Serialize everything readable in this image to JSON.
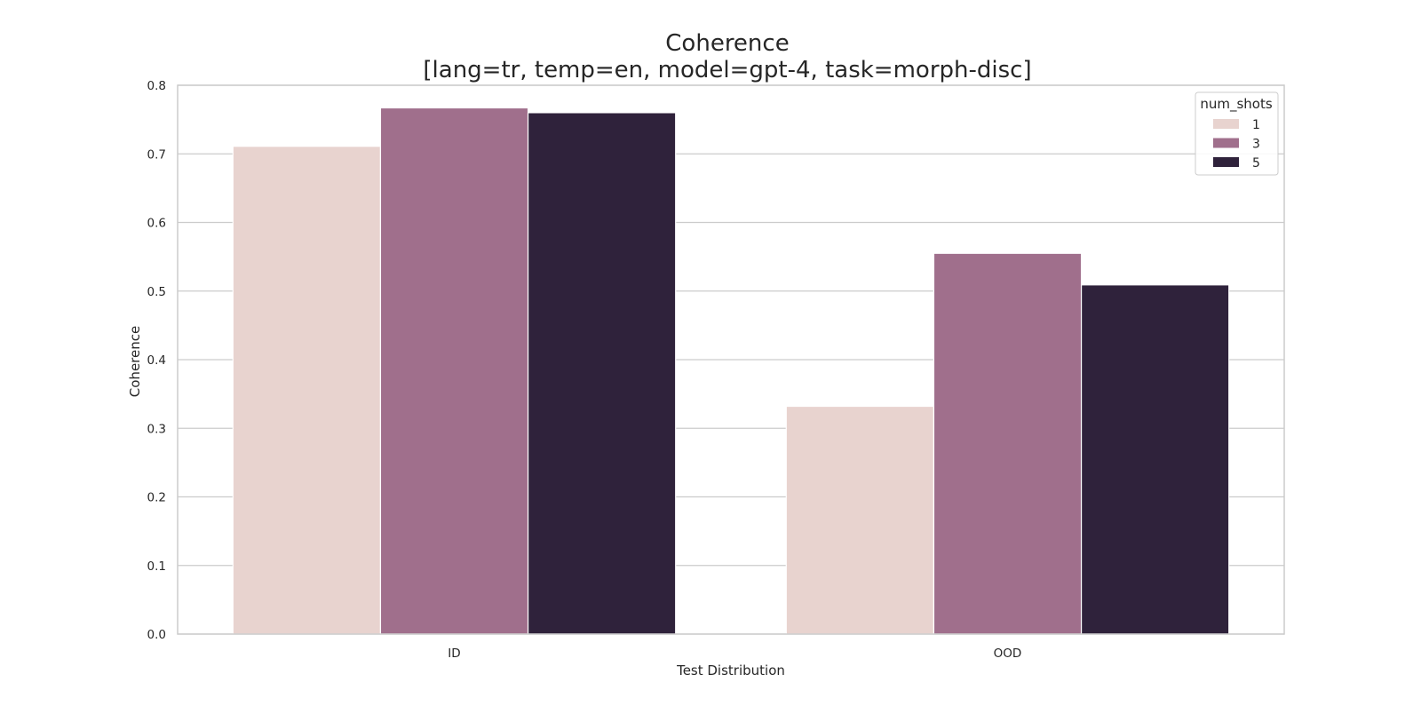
{
  "chart_data": {
    "type": "bar",
    "title": "Coherence",
    "subtitle": "[lang=tr, temp=en, model=gpt-4, task=morph-disc]",
    "xlabel": "Test Distribution",
    "ylabel": "Coherence",
    "categories": [
      "ID",
      "OOD"
    ],
    "ylim": [
      0,
      0.8
    ],
    "yticks": [
      "0.0",
      "0.1",
      "0.2",
      "0.3",
      "0.4",
      "0.5",
      "0.6",
      "0.7",
      "0.8"
    ],
    "grid": true,
    "legend": {
      "title": "num_shots",
      "placement": "top-right"
    },
    "series": [
      {
        "name": "1",
        "values": [
          0.711,
          0.332
        ],
        "color": "#e8d3cf"
      },
      {
        "name": "3",
        "values": [
          0.767,
          0.555
        ],
        "color": "#a06f8c"
      },
      {
        "name": "5",
        "values": [
          0.76,
          0.509
        ],
        "color": "#2f223b"
      }
    ]
  }
}
